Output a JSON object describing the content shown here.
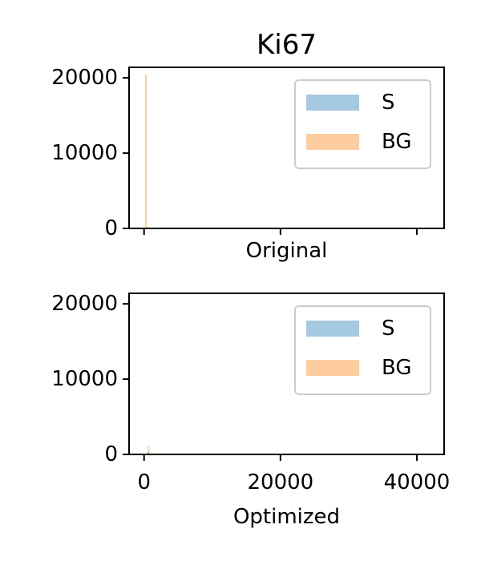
{
  "chart_data": [
    {
      "type": "histogram",
      "title": "Ki67",
      "xlabel": "Original",
      "ylabel": "",
      "xlim": [
        -2200,
        44000
      ],
      "ylim": [
        0,
        21400
      ],
      "xticks": [
        0,
        20000,
        40000
      ],
      "xtick_labels_visible": false,
      "yticks": [
        0,
        10000,
        20000
      ],
      "ytick_labels": [
        "0",
        "10000",
        "20000"
      ],
      "legend": {
        "placement": "top-right",
        "entries": [
          "S",
          "BG"
        ]
      },
      "grid": false,
      "series": [
        {
          "name": "S",
          "color": "#1f77b4",
          "opacity": 0.4,
          "bins": [
            {
              "x0": 1100,
              "x1": 2700,
              "count": 80
            }
          ]
        },
        {
          "name": "BG",
          "color": "#ff7f0e",
          "opacity": 0.4,
          "bins": [
            {
              "x0": 150,
              "x1": 400,
              "count": 20400
            },
            {
              "x0": 400,
              "x1": 800,
              "count": 150
            }
          ]
        }
      ]
    },
    {
      "type": "histogram",
      "title": "",
      "xlabel": "Optimized",
      "ylabel": "",
      "xlim": [
        -2200,
        44000
      ],
      "ylim": [
        0,
        21400
      ],
      "xticks": [
        0,
        20000,
        40000
      ],
      "xtick_labels": [
        "0",
        "20000",
        "40000"
      ],
      "yticks": [
        0,
        10000,
        20000
      ],
      "ytick_labels": [
        "0",
        "10000",
        "20000"
      ],
      "legend": {
        "placement": "top-right",
        "entries": [
          "S",
          "BG"
        ]
      },
      "grid": false,
      "series": [
        {
          "name": "S",
          "color": "#1f77b4",
          "opacity": 0.4,
          "bins": [
            {
              "x0": 500,
              "x1": 800,
              "count": 300
            }
          ]
        },
        {
          "name": "BG",
          "color": "#ff7f0e",
          "opacity": 0.4,
          "bins": [
            {
              "x0": 550,
              "x1": 750,
              "count": 1200
            }
          ]
        }
      ]
    }
  ]
}
